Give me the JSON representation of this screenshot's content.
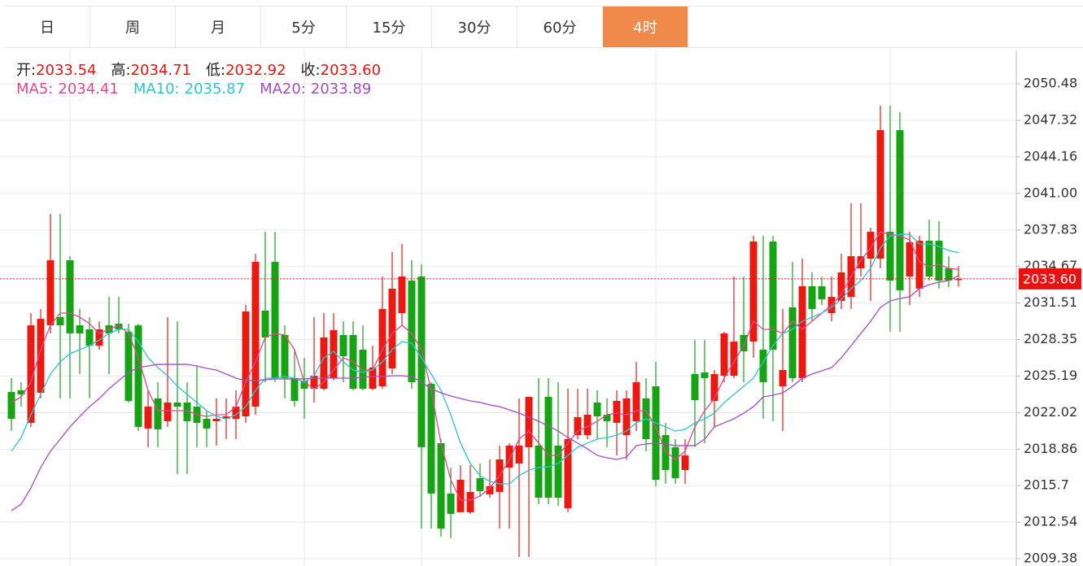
{
  "tabs": [
    "日",
    "周",
    "月",
    "5分",
    "15分",
    "30分",
    "60分",
    "4时"
  ],
  "active_tab_index": 7,
  "quote": [
    {
      "label": "开:",
      "value": "2033.54"
    },
    {
      "label": "高:",
      "value": "2034.71"
    },
    {
      "label": "低:",
      "value": "2032.92"
    },
    {
      "label": "收:",
      "value": "2033.60"
    }
  ],
  "chart_data": {
    "type": "candlestick",
    "up_color": "#ea1a12",
    "down_color": "#16a414",
    "open": [
      2023.81,
      2023.95,
      2021.14,
      2023.74,
      2029.58,
      2030.29,
      2035.21,
      2029.58,
      2029.23,
      2027.82,
      2029.58,
      2029.72,
      2029.02,
      2029.58,
      2020.65,
      2023.25,
      2021.28,
      2022.9,
      2022.9,
      2022.54,
      2021.49,
      2021.28,
      2021.49,
      2021.49,
      2021.7,
      2022.54,
      2030.85,
      2035.07,
      2028.74,
      2025.01,
      2024.8,
      2024.09,
      2024.09,
      2025.01,
      2028.74,
      2028.74,
      2027.47,
      2024.09,
      2024.3,
      2025.85,
      2030.64,
      2033.45,
      2033.8,
      2024.52,
      2019.38,
      2015.02,
      2013.4,
      2013.4,
      2016.35,
      2014.95,
      2015.16,
      2017.27,
      2017.62,
      2019.03,
      2019.17,
      2023.39,
      2019.17,
      2013.75,
      2020.08,
      2020.08,
      2022.9,
      2021.84,
      2021.14,
      2020.08,
      2021.28,
      2023.25,
      2024.3,
      2020.08,
      2019.03,
      2017.06,
      2025.36,
      2025.5,
      2023.04,
      2025.22,
      2025.22,
      2028.74,
      2028.17,
      2027.47,
      2036.83,
      2024.3,
      2031.13,
      2025.01,
      2032.96,
      2032.96,
      2030.64,
      2031.69,
      2032.04,
      2034.51,
      2035.35,
      2035.35,
      2037.67,
      2046.47,
      2033.8,
      2032.75,
      2036.9,
      2036.9,
      2034.51,
      2033.54
    ],
    "high": [
      2025.01,
      2024.66,
      2030.64,
      2030.99,
      2039.22,
      2039.22,
      2035.56,
      2030.99,
      2030.29,
      2029.93,
      2032.04,
      2032.04,
      2029.72,
      2029.72,
      2023.95,
      2024.66,
      2030.29,
      2029.93,
      2024.66,
      2026.06,
      2022.19,
      2023.25,
      2023.25,
      2023.95,
      2031.34,
      2035.77,
      2037.67,
      2037.67,
      2029.58,
      2027.47,
      2026.77,
      2030.29,
      2030.64,
      2030.64,
      2029.93,
      2029.93,
      2029.58,
      2027.82,
      2033.8,
      2035.92,
      2036.62,
      2035.21,
      2034.86,
      2024.66,
      2019.73,
      2017.27,
      2017.48,
      2017.48,
      2017.62,
      2017.97,
      2019.17,
      2019.38,
      2023.25,
      2023.39,
      2025.01,
      2025.01,
      2024.66,
      2024.09,
      2024.09,
      2024.09,
      2023.95,
      2023.25,
      2023.95,
      2023.95,
      2026.42,
      2025.01,
      2026.42,
      2021.14,
      2019.73,
      2019.73,
      2028.31,
      2028.31,
      2025.71,
      2029.02,
      2033.8,
      2033.8,
      2037.32,
      2037.32,
      2037.32,
      2030.99,
      2035.07,
      2035.35,
      2034.16,
      2033.8,
      2033.8,
      2035.77,
      2040.14,
      2040.14,
      2038.03,
      2048.58,
      2048.58,
      2048.02,
      2037.67,
      2037.32,
      2038.73,
      2038.59,
      2035.56,
      2034.71
    ],
    "low": [
      2020.43,
      2022.54,
      2020.79,
      2023.25,
      2028.88,
      2023.25,
      2023.25,
      2025.36,
      2023.25,
      2027.47,
      2025.36,
      2028.88,
      2022.9,
      2020.43,
      2019.03,
      2019.03,
      2020.79,
      2016.7,
      2016.7,
      2019.03,
      2019.03,
      2019.17,
      2019.73,
      2019.73,
      2021.14,
      2021.84,
      2024.66,
      2024.66,
      2023.25,
      2022.54,
      2021.49,
      2022.9,
      2023.95,
      2024.8,
      2024.66,
      2023.95,
      2023.95,
      2023.95,
      2024.09,
      2025.36,
      2029.58,
      2024.09,
      2011.99,
      2011.99,
      2011.29,
      2011.15,
      2013.4,
      2013.26,
      2014.8,
      2014.66,
      2011.99,
      2011.99,
      2009.53,
      2009.53,
      2014.1,
      2014.1,
      2013.96,
      2013.4,
      2019.73,
      2019.73,
      2019.73,
      2019.03,
      2018.32,
      2017.97,
      2020.43,
      2018.68,
      2015.65,
      2015.86,
      2015.86,
      2015.86,
      2019.03,
      2019.38,
      2020.79,
      2024.66,
      2025.01,
      2024.66,
      2026.77,
      2021.49,
      2021.28,
      2020.43,
      2024.66,
      2024.66,
      2029.93,
      2031.34,
      2029.93,
      2030.99,
      2030.99,
      2033.8,
      2031.69,
      2034.51,
      2029.02,
      2029.02,
      2031.34,
      2032.04,
      2033.45,
      2032.75,
      2032.89,
      2032.92
    ],
    "close": [
      2021.49,
      2023.6,
      2029.58,
      2030.14,
      2035.21,
      2029.58,
      2028.88,
      2028.88,
      2027.82,
      2029.23,
      2028.88,
      2029.23,
      2023.04,
      2020.79,
      2022.54,
      2020.57,
      2022.9,
      2022.54,
      2021.28,
      2021.14,
      2020.65,
      2021.49,
      2021.7,
      2022.54,
      2030.78,
      2035.07,
      2028.53,
      2025.01,
      2025.01,
      2023.04,
      2024.09,
      2025.22,
      2028.53,
      2029.16,
      2026.91,
      2024.09,
      2024.09,
      2025.92,
      2030.99,
      2032.75,
      2033.8,
      2024.66,
      2019.03,
      2015.02,
      2011.99,
      2013.26,
      2016.21,
      2015.16,
      2015.23,
      2015.65,
      2017.97,
      2019.17,
      2019.17,
      2023.39,
      2014.66,
      2014.66,
      2014.66,
      2019.73,
      2021.63,
      2021.84,
      2021.7,
      2021.28,
      2023.04,
      2023.25,
      2024.66,
      2019.73,
      2016.21,
      2017.06,
      2016.35,
      2018.32,
      2023.11,
      2025.01,
      2025.36,
      2028.88,
      2028.17,
      2027.33,
      2036.83,
      2024.66,
      2027.47,
      2025.71,
      2025.01,
      2032.96,
      2030.99,
      2031.83,
      2032.04,
      2034.16,
      2035.56,
      2035.56,
      2037.67,
      2046.47,
      2033.45,
      2032.61,
      2036.76,
      2036.9,
      2033.8,
      2033.45,
      2033.45,
      2033.6
    ],
    "series": [
      {
        "name": "MA5:",
        "color": "#e4478a",
        "values": [
          2022.9,
          2023.39,
          2024.66,
          2027.47,
          2029.58,
          2030.64,
          2030.64,
          2030.29,
          2029.72,
          2028.88,
          2029.23,
          2029.58,
          2028.88,
          2026.77,
          2023.95,
          2022.19,
          2022.19,
          2022.19,
          2022.19,
          2021.84,
          2021.7,
          2021.84,
          2021.84,
          2022.54,
          2024.66,
          2026.42,
          2028.53,
          2028.88,
          2028.74,
          2027.47,
          2024.66,
          2024.09,
          2024.66,
          2025.71,
          2026.77,
          2026.42,
          2025.71,
          2025.71,
          2027.47,
          2028.88,
          2029.58,
          2028.88,
          2027.47,
          2023.95,
          2019.38,
          2016.21,
          2014.45,
          2014.45,
          2014.8,
          2015.5,
          2016.56,
          2017.97,
          2019.73,
          2020.43,
          2019.38,
          2018.32,
          2018.32,
          2019.38,
          2020.43,
          2020.79,
          2021.28,
          2021.84,
          2021.98,
          2021.84,
          2022.19,
          2022.19,
          2020.79,
          2018.68,
          2017.97,
          2018.68,
          2020.79,
          2022.19,
          2023.25,
          2025.01,
          2026.42,
          2027.82,
          2029.93,
          2029.23,
          2029.23,
          2028.88,
          2029.93,
          2029.23,
          2029.93,
          2030.64,
          2031.34,
          2032.26,
          2033.8,
          2035.21,
          2036.27,
          2037.67,
          2037.46,
          2037.32,
          2036.97,
          2035.07,
          2034.65,
          2034.86,
          2034.51,
          2034.41
        ]
      },
      {
        "name": "MA10:",
        "color": "#2ec3d0",
        "values": [
          2018.68,
          2019.87,
          2021.84,
          2023.6,
          2025.36,
          2026.42,
          2027.12,
          2027.47,
          2027.82,
          2028.31,
          2028.88,
          2029.23,
          2029.23,
          2028.17,
          2026.77,
          2025.92,
          2025.22,
          2024.3,
          2023.6,
          2022.9,
          2022.19,
          2021.7,
          2021.49,
          2021.84,
          2022.54,
          2023.95,
          2025.01,
          2025.01,
          2025.15,
          2025.01,
          2024.66,
          2025.22,
          2026.77,
          2027.33,
          2026.42,
          2025.71,
          2025.5,
          2025.71,
          2026.42,
          2027.47,
          2028.17,
          2028.03,
          2026.77,
          2025.36,
          2023.95,
          2021.84,
          2019.38,
          2017.62,
          2016.56,
          2016.07,
          2015.86,
          2015.86,
          2016.56,
          2017.06,
          2017.27,
          2017.34,
          2017.62,
          2018.32,
          2019.03,
          2019.38,
          2019.73,
          2019.87,
          2020.08,
          2020.43,
          2021.14,
          2021.49,
          2021.14,
          2020.79,
          2020.43,
          2020.57,
          2021.14,
          2021.49,
          2021.98,
          2022.9,
          2023.6,
          2024.3,
          2025.01,
          2026.42,
          2027.82,
          2028.88,
          2029.23,
          2029.93,
          2030.29,
          2030.64,
          2031.13,
          2031.83,
          2032.75,
          2033.45,
          2034.51,
          2036.27,
          2037.32,
          2037.46,
          2037.46,
          2036.62,
          2036.62,
          2036.41,
          2036.06,
          2035.87
        ]
      },
      {
        "name": "MA20:",
        "color": "#a64cc4",
        "values": [
          2013.54,
          2014.1,
          2015.5,
          2017.27,
          2018.68,
          2019.73,
          2020.79,
          2021.7,
          2022.54,
          2023.25,
          2024.09,
          2024.8,
          2025.5,
          2025.92,
          2026.06,
          2026.2,
          2026.2,
          2026.2,
          2026.2,
          2026.06,
          2025.85,
          2025.71,
          2025.36,
          2025.01,
          2024.8,
          2024.8,
          2024.87,
          2024.94,
          2024.94,
          2024.94,
          2024.94,
          2025.01,
          2025.01,
          2025.01,
          2025.01,
          2025.01,
          2025.08,
          2025.15,
          2025.15,
          2025.22,
          2025.22,
          2025.15,
          2024.66,
          2024.09,
          2023.74,
          2023.46,
          2023.25,
          2023.04,
          2022.9,
          2022.69,
          2022.54,
          2022.26,
          2021.98,
          2021.63,
          2021.28,
          2020.86,
          2020.43,
          2019.87,
          2019.38,
          2018.89,
          2018.32,
          2018.11,
          2017.97,
          2018.18,
          2019.17,
          2019.31,
          2019.38,
          2019.31,
          2019.17,
          2019.17,
          2019.17,
          2019.73,
          2020.79,
          2021.14,
          2021.49,
          2021.98,
          2022.54,
          2023.39,
          2023.53,
          2023.74,
          2024.3,
          2025.01,
          2025.36,
          2025.64,
          2025.92,
          2026.77,
          2027.82,
          2028.88,
          2029.93,
          2031.13,
          2031.69,
          2031.9,
          2032.04,
          2032.75,
          2033.1,
          2033.31,
          2033.45,
          2033.89
        ]
      }
    ],
    "ylim": [
      2008.75,
      2053.37
    ],
    "yticks": [
      2009.38,
      2012.54,
      2015.7,
      2018.86,
      2022.02,
      2025.19,
      2028.35,
      2031.51,
      2034.67,
      2037.83,
      {
        "value": 2041,
        "label": "2041.00"
      },
      2044.16,
      2047.32,
      2050.48
    ],
    "grid": true,
    "last_price": {
      "value": 2033.6,
      "label": "2033.60",
      "color": "#e8130e"
    }
  }
}
